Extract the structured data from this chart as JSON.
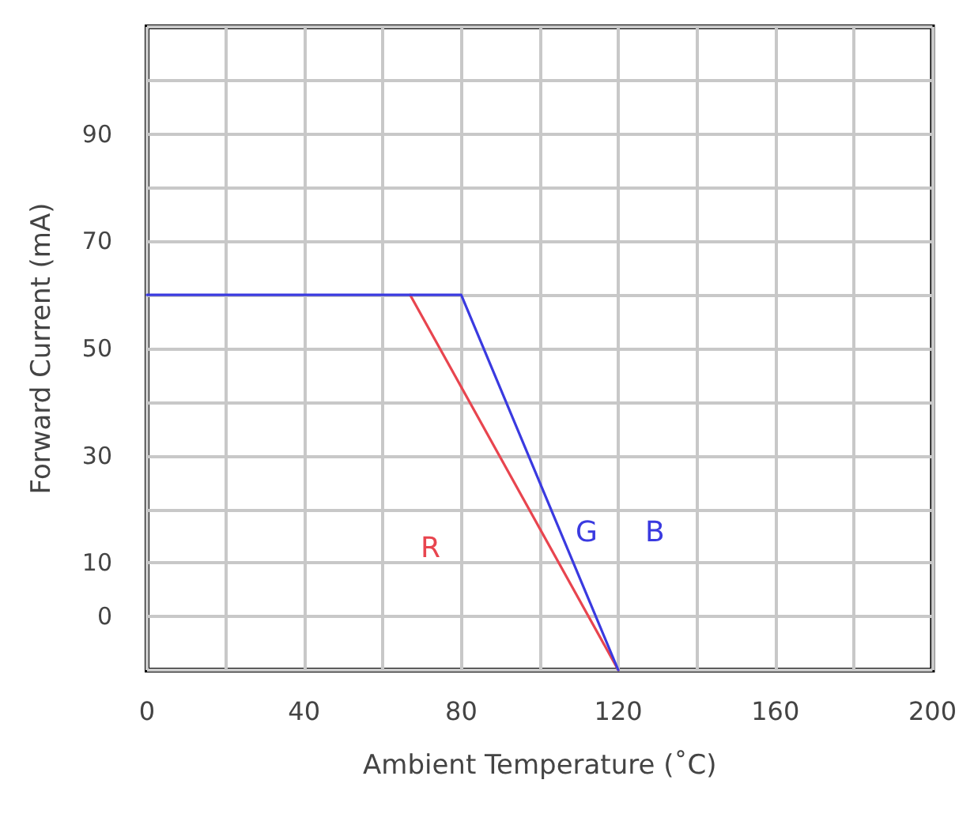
{
  "chart_data": {
    "type": "line",
    "xlabel": "Ambient Temperature (˚C)",
    "ylabel": "Forward Current (mA)",
    "series": [
      {
        "color": "#e8454f",
        "x": [
          67,
          120
        ],
        "values": [
          60,
          -10
        ]
      },
      {
        "color": "#3a3ae0",
        "x": [
          0,
          80,
          120
        ],
        "values": [
          60,
          60,
          -10
        ]
      }
    ],
    "annotations": [
      "R",
      "G",
      "B"
    ],
    "xlim": [
      0,
      200
    ],
    "xticks": [
      0,
      40,
      80,
      120,
      160,
      200
    ],
    "ylim": [
      -10,
      110
    ],
    "yticks": [
      0,
      10,
      30,
      50,
      70,
      90
    ],
    "grid": true,
    "marker": "none",
    "line_style": "solid"
  }
}
